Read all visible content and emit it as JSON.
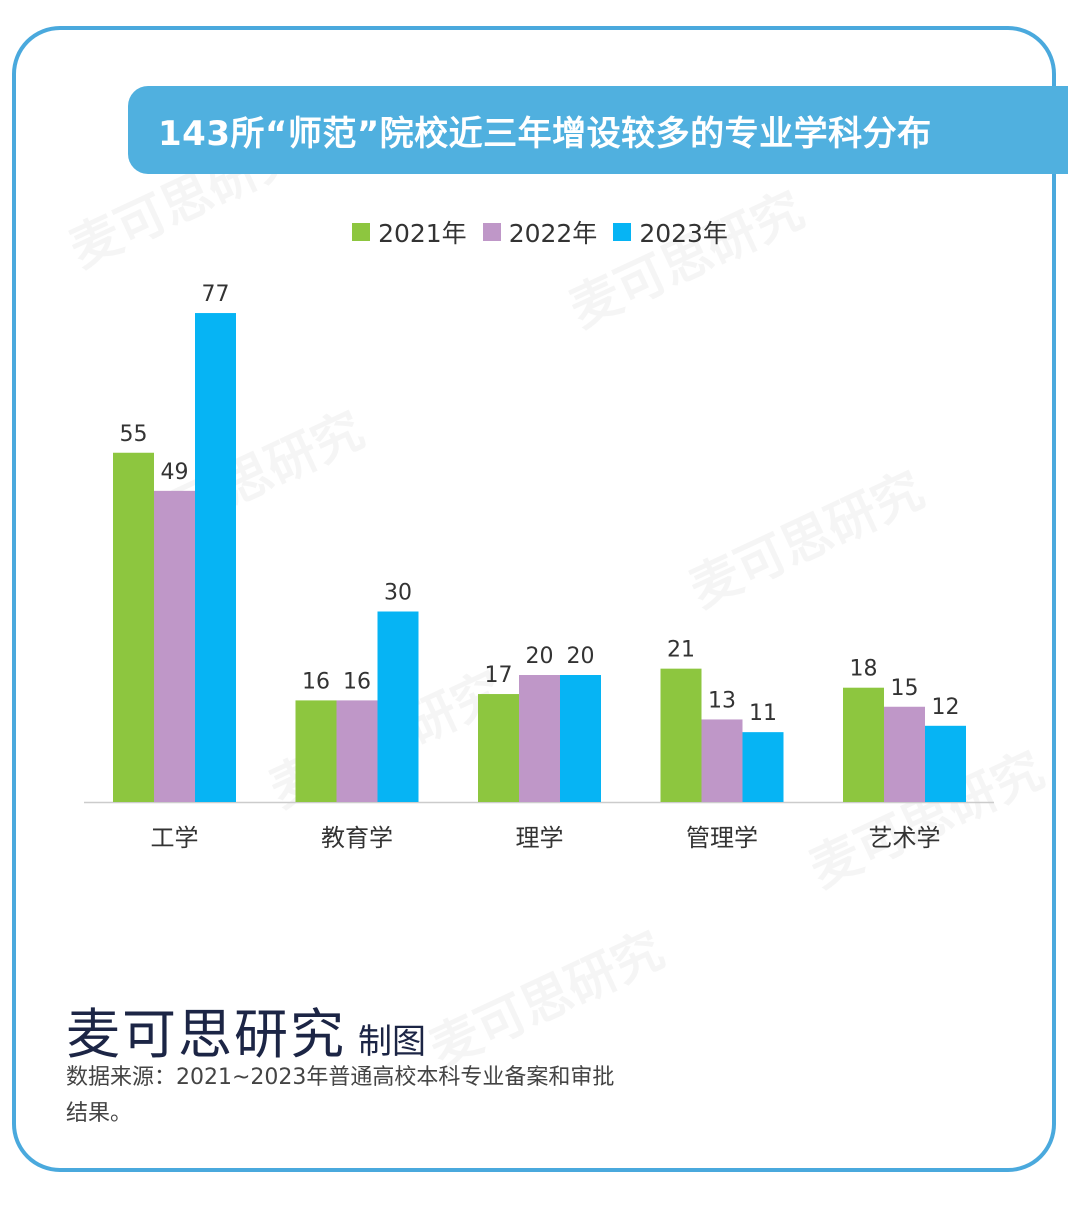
{
  "title": "143所“师范”院校近三年增设较多的专业学科分布",
  "legend": [
    {
      "label": "2021年",
      "color": "#8dc63f"
    },
    {
      "label": "2022年",
      "color": "#bf97c8"
    },
    {
      "label": "2023年",
      "color": "#06b4f4"
    }
  ],
  "chart_data": {
    "type": "bar",
    "categories": [
      "工学",
      "教育学",
      "理学",
      "管理学",
      "艺术学"
    ],
    "series": [
      {
        "name": "2021年",
        "values": [
          55,
          16,
          17,
          21,
          18
        ]
      },
      {
        "name": "2022年",
        "values": [
          49,
          16,
          20,
          13,
          15
        ]
      },
      {
        "name": "2023年",
        "values": [
          77,
          30,
          20,
          11,
          12
        ]
      }
    ],
    "title": "143所“师范”院校近三年增设较多的专业学科分布",
    "xlabel": "",
    "ylabel": "",
    "ylim": [
      0,
      80
    ],
    "grid": false,
    "legend_position": "top-center"
  },
  "footer": {
    "brand": "麦可思研究",
    "brand_suffix": "制图",
    "source": "数据来源：2021~2023年普通高校本科专业备案和审批结果。"
  },
  "watermark": "麦可思研究"
}
